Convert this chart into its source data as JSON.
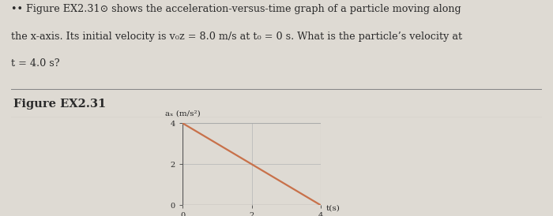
{
  "background_color": "#dedad3",
  "text_lines": [
    "•• Figure EX2.31⊙ shows the acceleration-versus-time graph of a particle moving along",
    "the x-axis. Its initial velocity is v₀z = 8.0 m/s at t₀ = 0 s. What is the particle’s velocity at",
    "t = 4.0 s?"
  ],
  "section_label": "Figure EX2.31",
  "graph": {
    "xlim": [
      0,
      4
    ],
    "ylim": [
      0,
      4
    ],
    "xticks": [
      0,
      2,
      4
    ],
    "yticks": [
      0,
      2,
      4
    ],
    "xtick_labels": [
      "0",
      "2",
      "4"
    ],
    "ytick_labels": [
      "0",
      "2",
      "4"
    ],
    "xlabel": "t(s)",
    "ylabel": "aₓ (m/s²)",
    "line_x": [
      0,
      4
    ],
    "line_y": [
      4,
      0
    ],
    "line_color": "#c8714a",
    "line_width": 1.6,
    "border_color": "#aaaaaa",
    "grid_color": "#bbbbbb"
  },
  "divider_color": "#888888",
  "text_color": "#2a2a2a",
  "label_color": "#2a2a2a"
}
